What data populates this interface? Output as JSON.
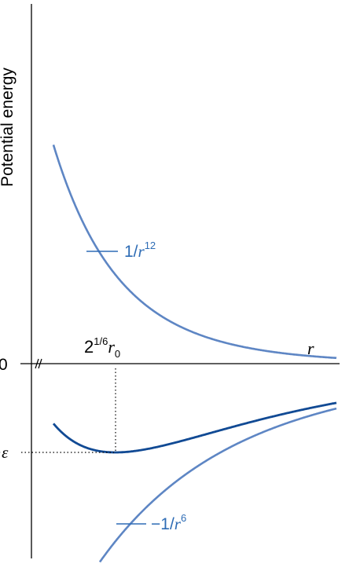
{
  "y_axis_label": "Potential energy",
  "zero_label": "0",
  "neg_eps_label": "−ε",
  "r_label": "r",
  "min_label": {
    "base": "2",
    "exponent": "1/6",
    "var": "r",
    "sub": "0"
  },
  "rep_label": {
    "prefix": "1/",
    "var": "r",
    "exponent": "12"
  },
  "att_label": {
    "prefix": "−1/",
    "var": "r",
    "exponent": "6"
  },
  "colors": {
    "total_curve": "#114a94",
    "component_curves": "#5e86c4",
    "label_blue": "#2e6cb5",
    "axes": "#000000"
  },
  "chart_data": {
    "type": "line",
    "xlabel": "r",
    "ylabel": "Potential energy",
    "y_ticks": [
      "0",
      "−ε"
    ],
    "x_annotation": "2^(1/6) r0",
    "series": [
      {
        "name": "1/r^12"
      },
      {
        "name": "−1/r^6"
      },
      {
        "name": ""
      }
    ]
  }
}
